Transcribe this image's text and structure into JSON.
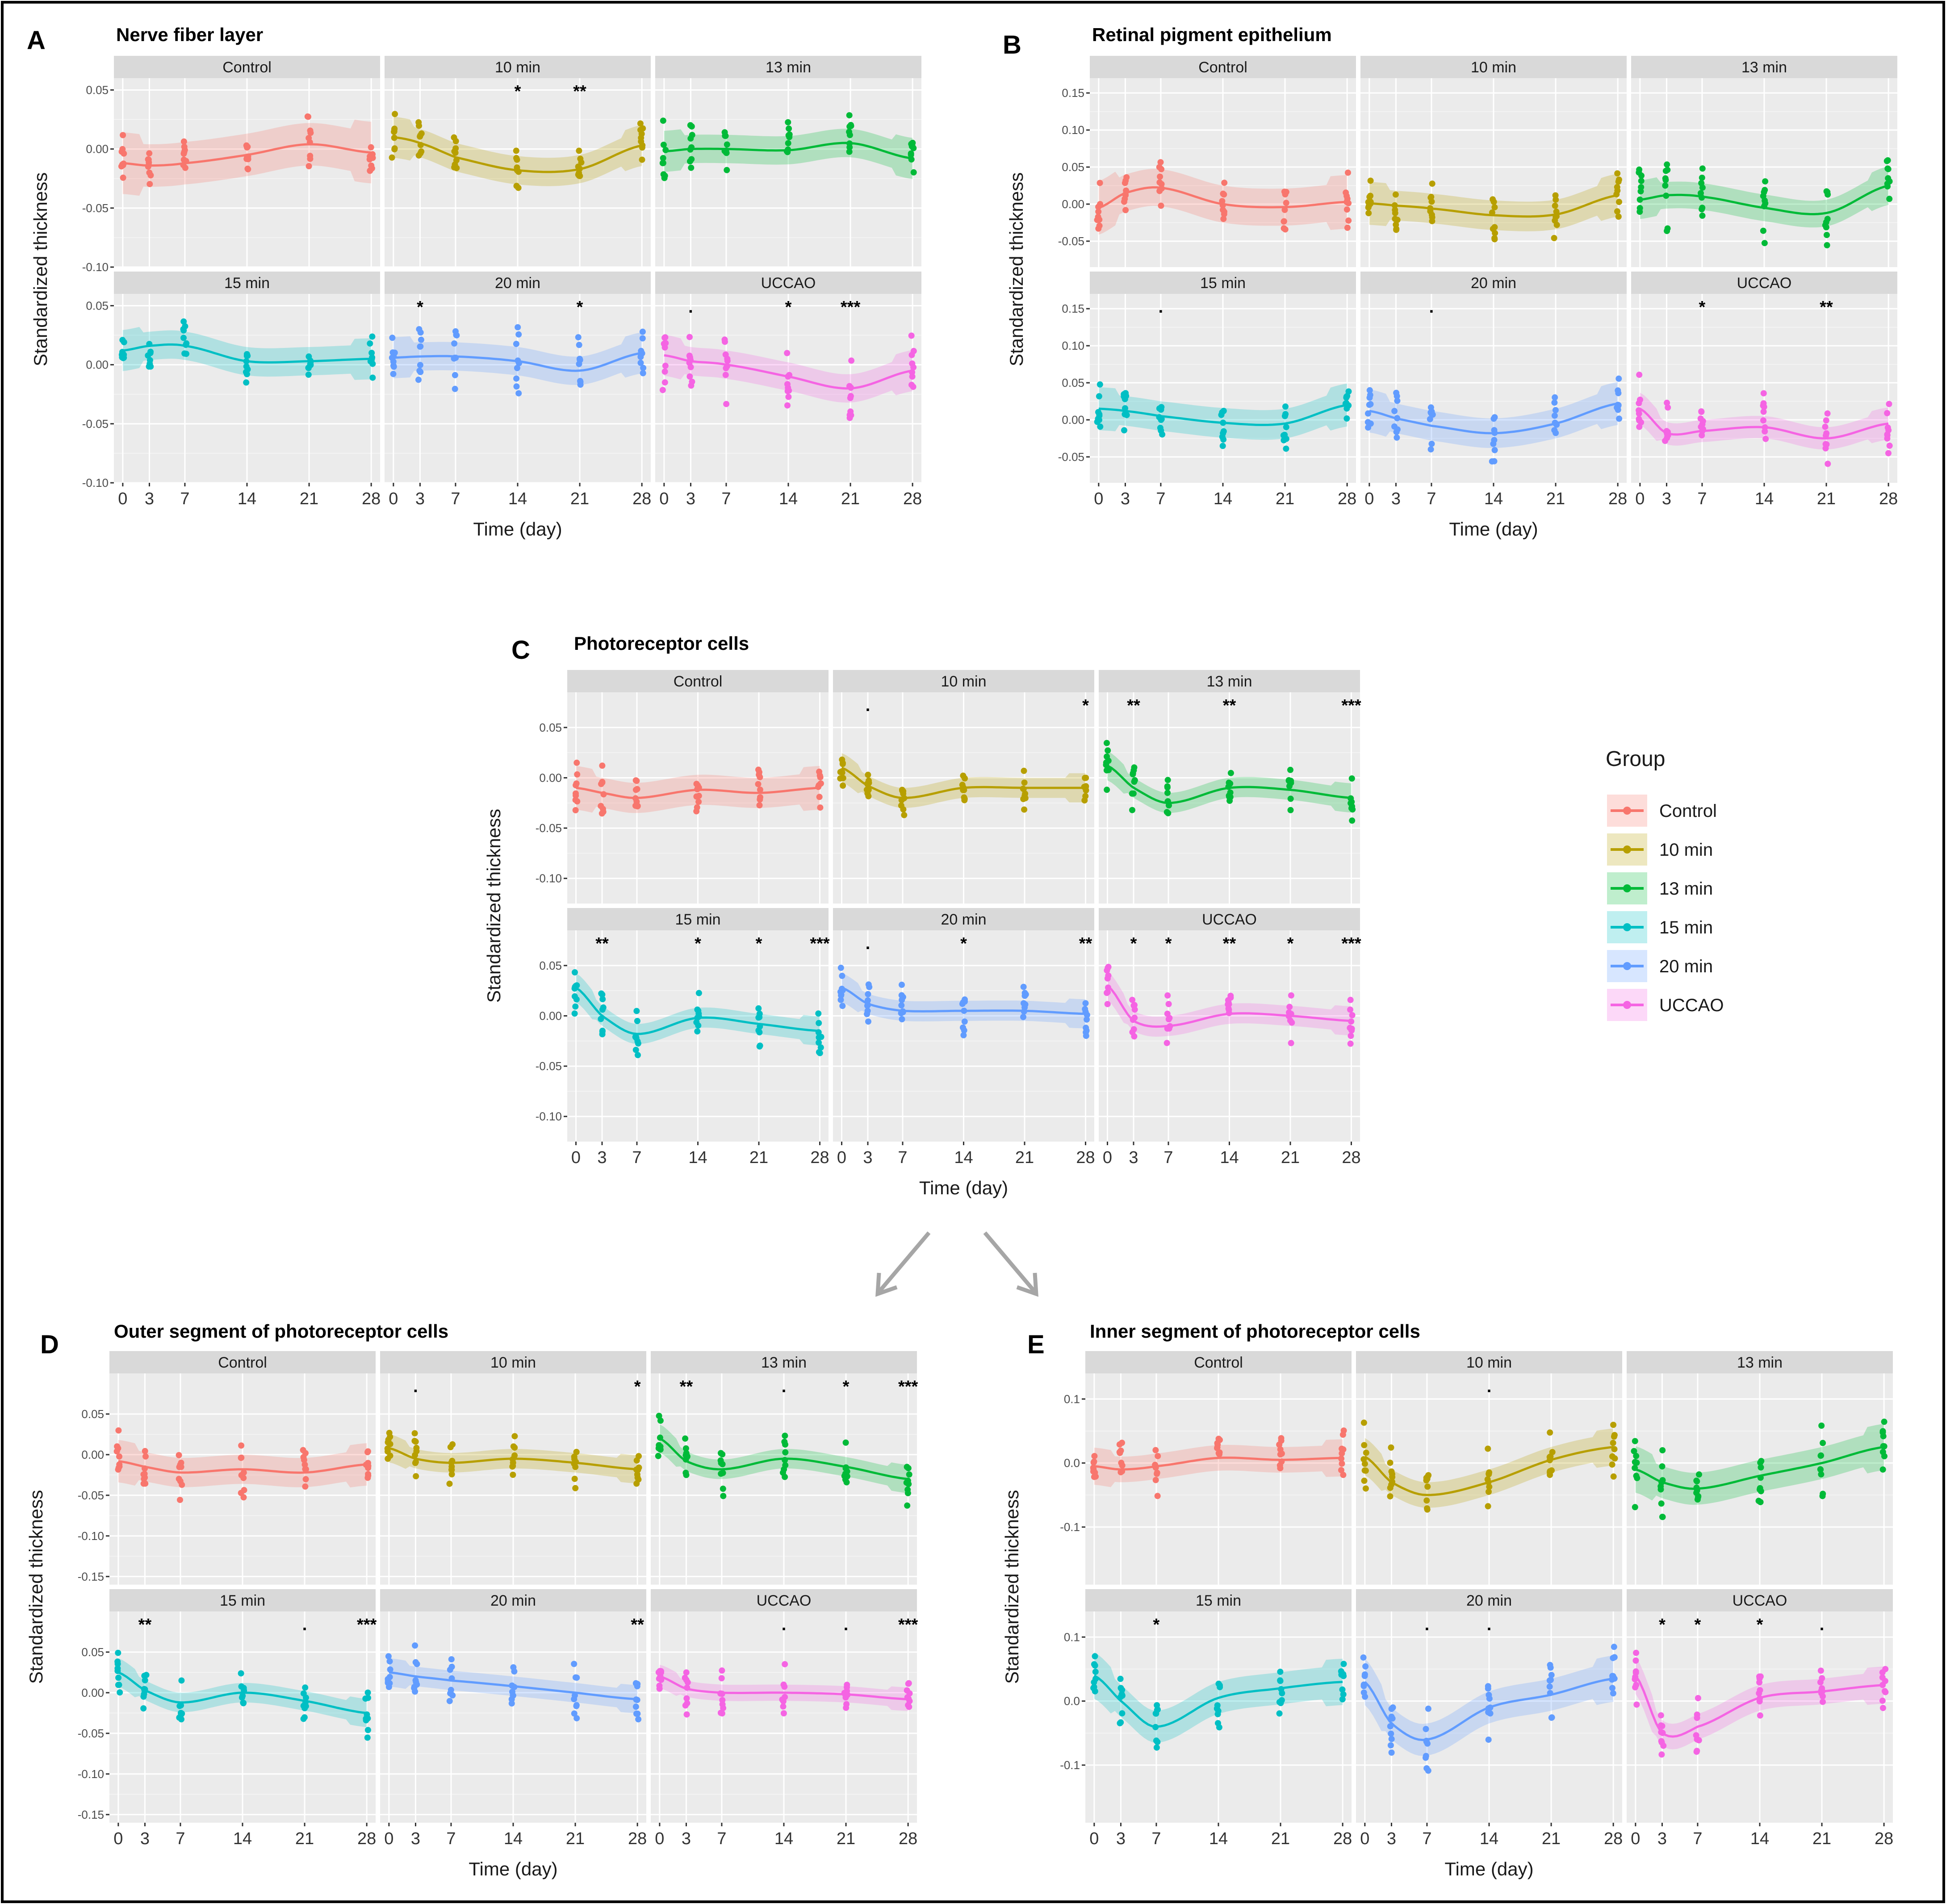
{
  "legend": {
    "title": "Group",
    "items": [
      {
        "label": "Control",
        "color": "#F8766D"
      },
      {
        "label": "10 min",
        "color": "#B79F00"
      },
      {
        "label": "13 min",
        "color": "#00BA38"
      },
      {
        "label": "15 min",
        "color": "#00BFC4"
      },
      {
        "label": "20 min",
        "color": "#619CFF"
      },
      {
        "label": "UCCAO",
        "color": "#F564E3"
      }
    ]
  },
  "chart_data": [
    {
      "id": "A",
      "letter": "A",
      "title": "Nerve fiber layer",
      "type": "line",
      "xlabel": "Time (day)",
      "ylabel": "Standardized thickness",
      "xticks": [
        0,
        3,
        7,
        14,
        21,
        28
      ],
      "xticklabels": [
        "0",
        "3",
        "7",
        "14",
        "21",
        "28"
      ],
      "ylim": [
        -0.1,
        0.06
      ],
      "yticks": [
        0.05,
        0.0,
        -0.05,
        -0.1
      ],
      "yticklabels": [
        "0.05",
        "0.00",
        "-0.05",
        "-0.10"
      ],
      "facets": [
        {
          "label": "Control",
          "group": "Control",
          "days": [
            0,
            3,
            7,
            14,
            21,
            28
          ],
          "mean": [
            -0.012,
            -0.014,
            -0.012,
            -0.005,
            0.004,
            -0.003
          ],
          "band": 0.018,
          "spread": 0.025,
          "sig": [
            "",
            "",
            "",
            "",
            "",
            ""
          ]
        },
        {
          "label": "10 min",
          "group": "10 min",
          "days": [
            0,
            3,
            7,
            14,
            21,
            28
          ],
          "mean": [
            0.01,
            0.005,
            -0.007,
            -0.018,
            -0.017,
            0.003
          ],
          "band": 0.012,
          "spread": 0.025,
          "sig": [
            "",
            "",
            "",
            "*",
            "**",
            ""
          ]
        },
        {
          "label": "13 min",
          "group": "13 min",
          "days": [
            0,
            3,
            7,
            14,
            21,
            28
          ],
          "mean": [
            -0.002,
            0.0,
            0.0,
            -0.001,
            0.005,
            -0.008
          ],
          "band": 0.012,
          "spread": 0.03,
          "sig": [
            "",
            "",
            "",
            "",
            "",
            ""
          ]
        },
        {
          "label": "15 min",
          "group": "15 min",
          "days": [
            0,
            3,
            7,
            14,
            21,
            28
          ],
          "mean": [
            0.012,
            0.016,
            0.016,
            0.003,
            0.003,
            0.005
          ],
          "band": 0.012,
          "spread": 0.022,
          "sig": [
            "",
            "",
            "",
            "",
            "",
            ""
          ]
        },
        {
          "label": "20 min",
          "group": "20 min",
          "days": [
            0,
            3,
            7,
            14,
            21,
            28
          ],
          "mean": [
            0.006,
            0.007,
            0.007,
            0.003,
            -0.005,
            0.01
          ],
          "band": 0.012,
          "spread": 0.035,
          "sig": [
            "",
            "*",
            "",
            "",
            "*",
            ""
          ]
        },
        {
          "label": "UCCAO",
          "group": "UCCAO",
          "days": [
            0,
            3,
            7,
            14,
            21,
            28
          ],
          "mean": [
            0.008,
            0.003,
            0.0,
            -0.01,
            -0.02,
            -0.005
          ],
          "band": 0.012,
          "spread": 0.035,
          "sig": [
            "",
            ".",
            "",
            "*",
            "***",
            ""
          ]
        }
      ]
    },
    {
      "id": "B",
      "letter": "B",
      "title": "Retinal pigment epithelium",
      "type": "line",
      "xlabel": "Time (day)",
      "ylabel": "Standardized thickness",
      "xticks": [
        0,
        3,
        7,
        14,
        21,
        28
      ],
      "xticklabels": [
        "0",
        "3",
        "7",
        "14",
        "21",
        "28"
      ],
      "ylim": [
        -0.085,
        0.17
      ],
      "yticks": [
        0.15,
        0.1,
        0.05,
        0.0,
        -0.05
      ],
      "yticklabels": [
        "0.15",
        "0.10",
        "0.05",
        "0.00",
        "-0.05"
      ],
      "facets": [
        {
          "label": "Control",
          "group": "Control",
          "days": [
            0,
            3,
            7,
            14,
            21,
            28
          ],
          "mean": [
            -0.005,
            0.015,
            0.022,
            0.0,
            -0.004,
            0.003
          ],
          "band": 0.025,
          "spread": 0.045,
          "sig": [
            "",
            "",
            "",
            "",
            "",
            ""
          ]
        },
        {
          "label": "10 min",
          "group": "10 min",
          "days": [
            0,
            3,
            7,
            14,
            21,
            28
          ],
          "mean": [
            0.001,
            -0.002,
            -0.006,
            -0.015,
            -0.014,
            0.012
          ],
          "band": 0.02,
          "spread": 0.045,
          "sig": [
            "",
            "",
            "",
            "",
            "",
            ""
          ]
        },
        {
          "label": "13 min",
          "group": "13 min",
          "days": [
            0,
            3,
            7,
            14,
            21,
            28
          ],
          "mean": [
            0.006,
            0.012,
            0.01,
            -0.005,
            -0.012,
            0.025
          ],
          "band": 0.018,
          "spread": 0.05,
          "sig": [
            "",
            "",
            "",
            "",
            "",
            ""
          ]
        },
        {
          "label": "15 min",
          "group": "15 min",
          "days": [
            0,
            3,
            7,
            14,
            21,
            28
          ],
          "mean": [
            0.015,
            0.012,
            0.005,
            -0.004,
            -0.005,
            0.02
          ],
          "band": 0.02,
          "spread": 0.045,
          "sig": [
            "",
            "",
            ".",
            "",
            "",
            ""
          ]
        },
        {
          "label": "20 min",
          "group": "20 min",
          "days": [
            0,
            3,
            7,
            14,
            21,
            28
          ],
          "mean": [
            0.012,
            0.002,
            -0.008,
            -0.018,
            -0.005,
            0.022
          ],
          "band": 0.02,
          "spread": 0.05,
          "sig": [
            "",
            "",
            ".",
            "",
            "",
            ""
          ]
        },
        {
          "label": "UCCAO",
          "group": "UCCAO",
          "days": [
            0,
            3,
            7,
            14,
            21,
            28
          ],
          "mean": [
            0.015,
            -0.018,
            -0.015,
            -0.01,
            -0.025,
            -0.005
          ],
          "band": 0.015,
          "spread": 0.05,
          "sig": [
            "",
            "",
            "*",
            "",
            "**",
            ""
          ]
        }
      ]
    },
    {
      "id": "C",
      "letter": "C",
      "title": "Photoreceptor cells",
      "type": "line",
      "xlabel": "Time (day)",
      "ylabel": "Standardized thickness",
      "xticks": [
        0,
        3,
        7,
        14,
        21,
        28
      ],
      "xticklabels": [
        "0",
        "3",
        "7",
        "14",
        "21",
        "28"
      ],
      "ylim": [
        -0.125,
        0.085
      ],
      "yticks": [
        0.05,
        0.0,
        -0.05,
        -0.1
      ],
      "yticklabels": [
        "0.05",
        "0.00",
        "-0.05",
        "-0.10"
      ],
      "facets": [
        {
          "label": "Control",
          "group": "Control",
          "days": [
            0,
            3,
            7,
            14,
            21,
            28
          ],
          "mean": [
            -0.01,
            -0.015,
            -0.02,
            -0.012,
            -0.015,
            -0.01
          ],
          "band": 0.015,
          "spread": 0.03,
          "sig": [
            "",
            "",
            "",
            "",
            "",
            ""
          ]
        },
        {
          "label": "10 min",
          "group": "10 min",
          "days": [
            0,
            3,
            7,
            14,
            21,
            28
          ],
          "mean": [
            0.01,
            -0.008,
            -0.02,
            -0.01,
            -0.01,
            -0.01
          ],
          "band": 0.01,
          "spread": 0.025,
          "sig": [
            "",
            ".",
            "",
            "",
            "",
            "*"
          ]
        },
        {
          "label": "13 min",
          "group": "13 min",
          "days": [
            0,
            3,
            7,
            14,
            21,
            28
          ],
          "mean": [
            0.012,
            -0.01,
            -0.025,
            -0.01,
            -0.012,
            -0.02
          ],
          "band": 0.01,
          "spread": 0.03,
          "sig": [
            "",
            "**",
            "",
            "**",
            "",
            "***"
          ]
        },
        {
          "label": "15 min",
          "group": "15 min",
          "days": [
            0,
            3,
            7,
            14,
            21,
            28
          ],
          "mean": [
            0.028,
            0.0,
            -0.018,
            -0.002,
            -0.008,
            -0.015
          ],
          "band": 0.01,
          "spread": 0.03,
          "sig": [
            "",
            "**",
            "",
            "*",
            "*",
            "***"
          ]
        },
        {
          "label": "20 min",
          "group": "20 min",
          "days": [
            0,
            3,
            7,
            14,
            21,
            28
          ],
          "mean": [
            0.028,
            0.012,
            0.005,
            0.005,
            0.005,
            0.002
          ],
          "band": 0.01,
          "spread": 0.03,
          "sig": [
            "",
            ".",
            "",
            "*",
            "",
            "**"
          ]
        },
        {
          "label": "UCCAO",
          "group": "UCCAO",
          "days": [
            0,
            3,
            7,
            14,
            21,
            28
          ],
          "mean": [
            0.03,
            -0.005,
            -0.01,
            0.002,
            0.0,
            -0.005
          ],
          "band": 0.01,
          "spread": 0.035,
          "sig": [
            "",
            "*",
            "*",
            "**",
            "*",
            "***"
          ]
        }
      ]
    },
    {
      "id": "D",
      "letter": "D",
      "title": "Outer segment of photoreceptor cells",
      "type": "line",
      "xlabel": "Time (day)",
      "ylabel": "Standardized thickness",
      "xticks": [
        0,
        3,
        7,
        14,
        21,
        28
      ],
      "xticklabels": [
        "0",
        "3",
        "7",
        "14",
        "21",
        "28"
      ],
      "ylim": [
        -0.16,
        0.1
      ],
      "yticks": [
        0.05,
        0.0,
        -0.05,
        -0.1,
        -0.15
      ],
      "yticklabels": [
        "0.05",
        "0.00",
        "-0.05",
        "-0.10",
        "-0.15"
      ],
      "facets": [
        {
          "label": "Control",
          "group": "Control",
          "days": [
            0,
            3,
            7,
            14,
            21,
            28
          ],
          "mean": [
            -0.008,
            -0.015,
            -0.022,
            -0.018,
            -0.022,
            -0.012
          ],
          "band": 0.018,
          "spread": 0.04,
          "sig": [
            "",
            "",
            "",
            "",
            "",
            ""
          ]
        },
        {
          "label": "10 min",
          "group": "10 min",
          "days": [
            0,
            3,
            7,
            14,
            21,
            28
          ],
          "mean": [
            0.008,
            -0.005,
            -0.01,
            -0.005,
            -0.01,
            -0.018
          ],
          "band": 0.012,
          "spread": 0.035,
          "sig": [
            "",
            ".",
            "",
            "",
            "",
            "*"
          ]
        },
        {
          "label": "13 min",
          "group": "13 min",
          "days": [
            0,
            3,
            7,
            14,
            21,
            28
          ],
          "mean": [
            0.02,
            -0.008,
            -0.018,
            -0.005,
            -0.015,
            -0.03
          ],
          "band": 0.012,
          "spread": 0.04,
          "sig": [
            "",
            "**",
            "",
            ".",
            "*",
            "***"
          ]
        },
        {
          "label": "15 min",
          "group": "15 min",
          "days": [
            0,
            3,
            7,
            14,
            21,
            28
          ],
          "mean": [
            0.025,
            0.003,
            -0.012,
            0.0,
            -0.01,
            -0.025
          ],
          "band": 0.012,
          "spread": 0.035,
          "sig": [
            "",
            "**",
            "",
            "",
            ".",
            "***"
          ]
        },
        {
          "label": "20 min",
          "group": "20 min",
          "days": [
            0,
            3,
            7,
            14,
            21,
            28
          ],
          "mean": [
            0.025,
            0.02,
            0.015,
            0.008,
            0.0,
            -0.008
          ],
          "band": 0.012,
          "spread": 0.04,
          "sig": [
            "",
            "",
            "",
            "",
            "",
            "**"
          ]
        },
        {
          "label": "UCCAO",
          "group": "UCCAO",
          "days": [
            0,
            3,
            7,
            14,
            21,
            28
          ],
          "mean": [
            0.02,
            0.005,
            0.0,
            0.0,
            -0.002,
            -0.008
          ],
          "band": 0.01,
          "spread": 0.04,
          "sig": [
            "",
            "",
            "",
            ".",
            ".",
            "***"
          ]
        }
      ]
    },
    {
      "id": "E",
      "letter": "E",
      "title": "Inner segment of photoreceptor cells",
      "type": "line",
      "xlabel": "Time (day)",
      "ylabel": "Standardized thickness",
      "xticks": [
        0,
        3,
        7,
        14,
        21,
        28
      ],
      "xticklabels": [
        "0",
        "3",
        "7",
        "14",
        "21",
        "28"
      ],
      "ylim": [
        -0.19,
        0.14
      ],
      "yticks": [
        0.1,
        0.0,
        -0.1
      ],
      "yticklabels": [
        "0.1",
        "0.0",
        "-0.1"
      ],
      "facets": [
        {
          "label": "Control",
          "group": "Control",
          "days": [
            0,
            3,
            7,
            14,
            21,
            28
          ],
          "mean": [
            -0.005,
            -0.01,
            -0.005,
            0.008,
            0.005,
            0.008
          ],
          "band": 0.02,
          "spread": 0.05,
          "sig": [
            "",
            "",
            "",
            "",
            "",
            ""
          ]
        },
        {
          "label": "10 min",
          "group": "10 min",
          "days": [
            0,
            3,
            7,
            14,
            21,
            28
          ],
          "mean": [
            0.01,
            -0.03,
            -0.05,
            -0.03,
            0.005,
            0.025
          ],
          "band": 0.02,
          "spread": 0.06,
          "sig": [
            "",
            "",
            "",
            ".",
            "",
            ""
          ]
        },
        {
          "label": "13 min",
          "group": "13 min",
          "days": [
            0,
            3,
            7,
            14,
            21,
            28
          ],
          "mean": [
            -0.01,
            -0.03,
            -0.04,
            -0.02,
            0.0,
            0.025
          ],
          "band": 0.025,
          "spread": 0.07,
          "sig": [
            "",
            "",
            "",
            "",
            "",
            ""
          ]
        },
        {
          "label": "15 min",
          "group": "15 min",
          "days": [
            0,
            3,
            7,
            14,
            21,
            28
          ],
          "mean": [
            0.04,
            0.0,
            -0.04,
            0.005,
            0.02,
            0.03
          ],
          "band": 0.025,
          "spread": 0.05,
          "sig": [
            "",
            "",
            "*",
            "",
            "",
            ""
          ]
        },
        {
          "label": "20 min",
          "group": "20 min",
          "days": [
            0,
            3,
            7,
            14,
            21,
            28
          ],
          "mean": [
            0.03,
            -0.035,
            -0.06,
            -0.01,
            0.01,
            0.035
          ],
          "band": 0.025,
          "spread": 0.06,
          "sig": [
            "",
            "",
            ".",
            ".",
            "",
            ""
          ]
        },
        {
          "label": "UCCAO",
          "group": "UCCAO",
          "days": [
            0,
            3,
            7,
            14,
            21,
            28
          ],
          "mean": [
            0.04,
            -0.05,
            -0.04,
            0.005,
            0.015,
            0.025
          ],
          "band": 0.02,
          "spread": 0.05,
          "sig": [
            "",
            "*",
            "*",
            "*",
            ".",
            ""
          ]
        }
      ]
    }
  ]
}
